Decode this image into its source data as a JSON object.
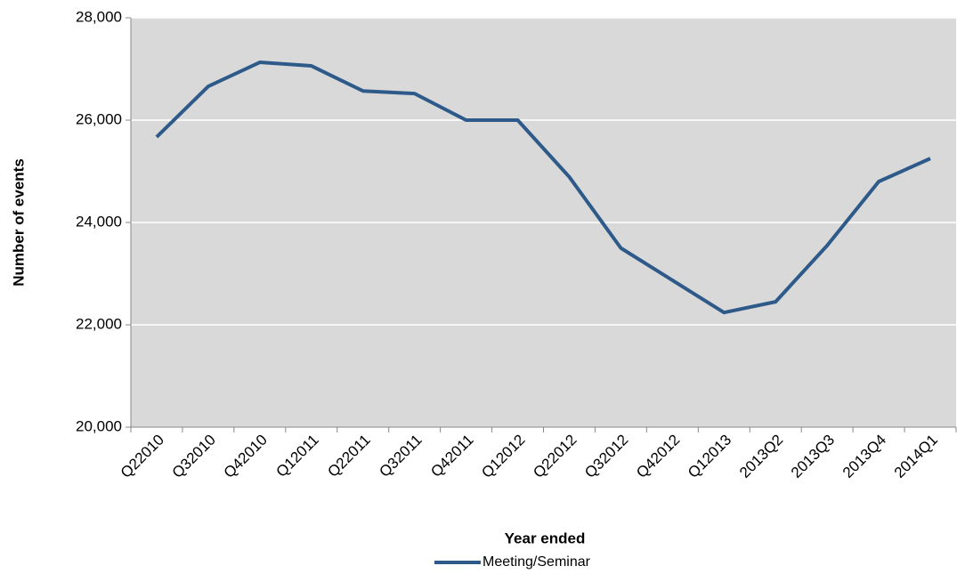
{
  "chart_data": {
    "type": "line",
    "x_label": "Year ended",
    "y_label": "Number of events",
    "categories": [
      "Q22010",
      "Q32010",
      "Q42010",
      "Q12011",
      "Q22011",
      "Q32011",
      "Q42011",
      "Q12012",
      "Q22012",
      "Q32012",
      "Q42012",
      "Q12013",
      "2013Q2",
      "2013Q3",
      "2013Q4",
      "2014Q1"
    ],
    "series": [
      {
        "name": "Meeting/Seminar",
        "color": "#2e5a8a",
        "values": [
          25670,
          26660,
          27130,
          27060,
          26570,
          26520,
          26000,
          26000,
          24890,
          23500,
          22870,
          22240,
          22450,
          23550,
          24800,
          25250
        ]
      }
    ],
    "ylim": [
      20000,
      28000
    ],
    "yticks": [
      {
        "value": 20000,
        "label": "20,000"
      },
      {
        "value": 22000,
        "label": "22,000"
      },
      {
        "value": 24000,
        "label": "24,000"
      },
      {
        "value": 26000,
        "label": "26,000"
      },
      {
        "value": 28000,
        "label": "28,000"
      }
    ],
    "grid": true,
    "plot_background": "#d9d9d9",
    "legend": "bottom"
  }
}
